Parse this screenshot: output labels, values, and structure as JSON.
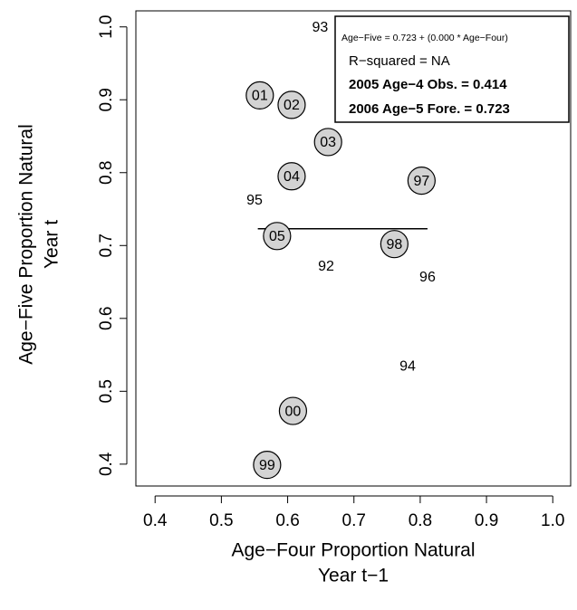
{
  "chart_data": {
    "type": "scatter",
    "x_label": [
      "Age−Four Proportion Natural",
      "Year t−1"
    ],
    "y_label": [
      "Age−Five Proportion Natural",
      "Year t"
    ],
    "xlim": [
      0.371,
      1.027
    ],
    "ylim": [
      0.37,
      1.022
    ],
    "xticks": [
      0.4,
      0.5,
      0.6,
      0.7,
      0.8,
      0.9,
      {
        "value": 1,
        "label": "1.0"
      }
    ],
    "yticks": [
      0.4,
      0.5,
      0.6,
      0.7,
      0.8,
      0.9,
      {
        "value": 1,
        "label": "1.0"
      }
    ],
    "points": [
      {
        "label": "01",
        "x": 0.558,
        "y": 0.906,
        "circled": true
      },
      {
        "label": "02",
        "x": 0.606,
        "y": 0.893,
        "circled": true
      },
      {
        "label": "03",
        "x": 0.661,
        "y": 0.842,
        "circled": true
      },
      {
        "label": "04",
        "x": 0.606,
        "y": 0.795,
        "circled": true
      },
      {
        "label": "97",
        "x": 0.802,
        "y": 0.789,
        "circled": true
      },
      {
        "label": "05",
        "x": 0.584,
        "y": 0.713,
        "circled": true
      },
      {
        "label": "98",
        "x": 0.761,
        "y": 0.702,
        "circled": true
      },
      {
        "label": "00",
        "x": 0.608,
        "y": 0.473,
        "circled": true
      },
      {
        "label": "99",
        "x": 0.569,
        "y": 0.399,
        "circled": true
      },
      {
        "label": "93",
        "x": 0.649,
        "y": 1.0,
        "circled": false
      },
      {
        "label": "95",
        "x": 0.55,
        "y": 0.763,
        "circled": false
      },
      {
        "label": "92",
        "x": 0.658,
        "y": 0.672,
        "circled": false
      },
      {
        "label": "96",
        "x": 0.811,
        "y": 0.657,
        "circled": false
      },
      {
        "label": "94",
        "x": 0.781,
        "y": 0.535,
        "circled": false
      }
    ],
    "circle_color": "#d3d3d3",
    "fit_line": {
      "x": [
        0.555,
        0.811
      ],
      "y": [
        0.723,
        0.723
      ]
    },
    "annotations": [
      {
        "text": "Age−Five = 0.723 + (0.000 * Age−Four)",
        "bold": false,
        "size": "small"
      },
      {
        "text": "R−squared = NA",
        "bold": false,
        "size": "large"
      },
      {
        "text": "2005 Age−4 Obs. = 0.414",
        "bold": true,
        "size": "large"
      },
      {
        "text": "2006 Age−5 Fore. = 0.723",
        "bold": true,
        "size": "large"
      }
    ]
  }
}
